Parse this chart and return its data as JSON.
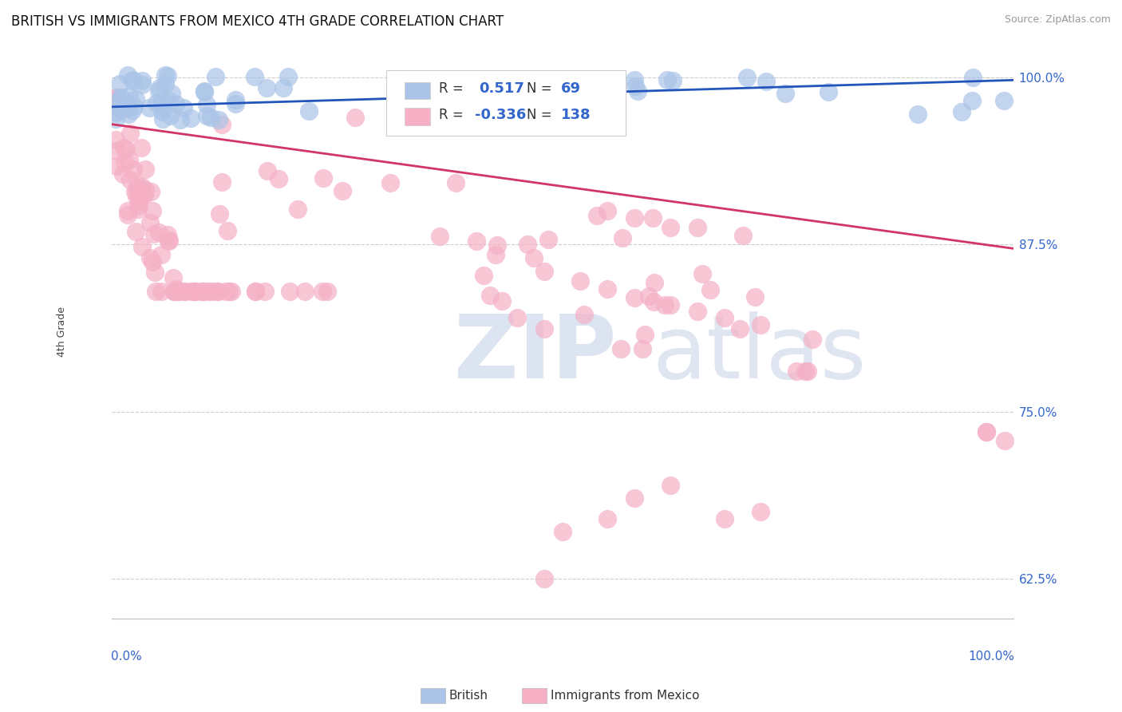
{
  "title": "BRITISH VS IMMIGRANTS FROM MEXICO 4TH GRADE CORRELATION CHART",
  "source": "Source: ZipAtlas.com",
  "ylabel": "4th Grade",
  "ytick_labels": [
    "62.5%",
    "75.0%",
    "87.5%",
    "100.0%"
  ],
  "ytick_values": [
    0.625,
    0.75,
    0.875,
    1.0
  ],
  "xlim": [
    0.0,
    1.0
  ],
  "ylim": [
    0.595,
    1.025
  ],
  "british_R": 0.517,
  "british_N": 69,
  "mexico_R": -0.336,
  "mexico_N": 138,
  "british_color": "#aac4e8",
  "british_edge_color": "#aac4e8",
  "british_line_color": "#2255bb",
  "mexico_color": "#f5b0c5",
  "mexico_edge_color": "#f5b0c5",
  "mexico_line_color": "#d03565",
  "background_color": "#ffffff",
  "legend_R_color": "#3366cc",
  "legend_N_color": "#3366cc",
  "watermark_zip_color": "#c0cfe8",
  "watermark_atlas_color": "#b8c8e0",
  "brit_line_y0": 0.978,
  "brit_line_y1": 0.998,
  "mex_line_y0": 0.965,
  "mex_line_y1": 0.872
}
